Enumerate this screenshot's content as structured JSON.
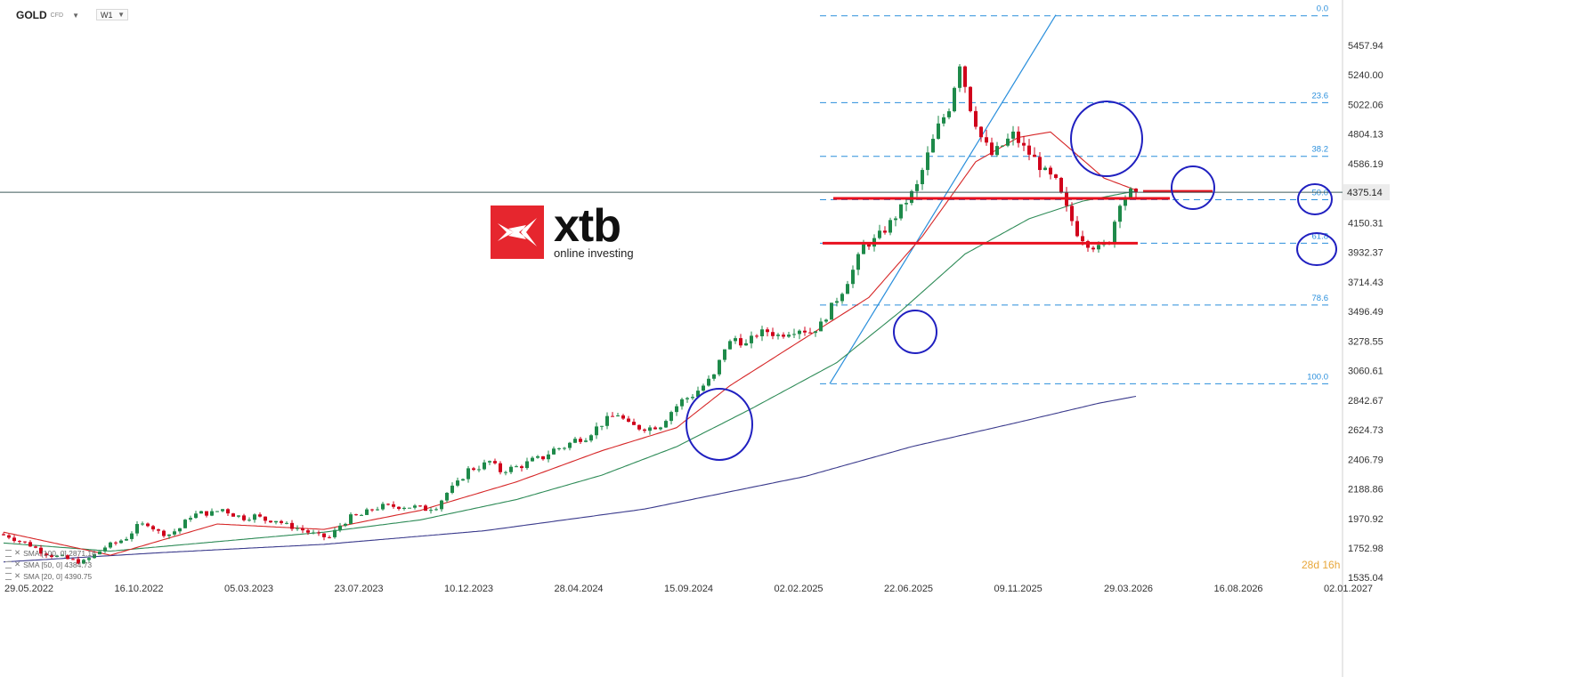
{
  "header": {
    "symbol": "GOLD",
    "symbol_type": "CFD",
    "timeframe": "W1"
  },
  "logo": {
    "name": "xtb",
    "tagline": "online investing"
  },
  "legend": [
    {
      "label": "SMA [100, 0] 2871.16",
      "color": "#3a3a8c"
    },
    {
      "label": "SMA [50, 0] 4384.73",
      "color": "#2e8b57"
    },
    {
      "label": "SMA [20, 0] 4390.75",
      "color": "#d62728"
    }
  ],
  "countdown": "28d 16h",
  "colors": {
    "bull": "#1e8a4a",
    "bear": "#d0021b",
    "fib": "#2a8fdc",
    "circle": "#2020c0",
    "level": "#e8101e"
  },
  "chart_data": {
    "type": "candlestick",
    "title": "GOLD CFD W1",
    "x_ticks": [
      "29.05.2022",
      "16.10.2022",
      "05.03.2023",
      "23.07.2023",
      "10.12.2023",
      "28.04.2024",
      "15.09.2024",
      "02.02.2025",
      "22.06.2025",
      "09.11.2025",
      "29.03.2026",
      "16.08.2026",
      "02.01.2027"
    ],
    "y_ticks": [
      5457.94,
      5240.0,
      5022.06,
      4804.13,
      4586.19,
      4150.31,
      3932.37,
      3714.43,
      3496.49,
      3278.55,
      3060.61,
      2842.67,
      2624.73,
      2406.79,
      2188.86,
      1970.92,
      1752.98,
      1535.04
    ],
    "ylim": [
      1535.04,
      5676
    ],
    "current_price": 4375.14,
    "x_unit": "weeks since 29.05.2022",
    "anchors": [
      [
        0,
        1855
      ],
      [
        2,
        1840
      ],
      [
        4,
        1805
      ],
      [
        6,
        1775
      ],
      [
        8,
        1730
      ],
      [
        10,
        1700
      ],
      [
        12,
        1680
      ],
      [
        14,
        1660
      ],
      [
        16,
        1650
      ],
      [
        18,
        1700
      ],
      [
        20,
        1760
      ],
      [
        22,
        1790
      ],
      [
        24,
        1830
      ],
      [
        26,
        1910
      ],
      [
        28,
        1935
      ],
      [
        30,
        1870
      ],
      [
        32,
        1855
      ],
      [
        34,
        1900
      ],
      [
        36,
        1990
      ],
      [
        38,
        2010
      ],
      [
        40,
        2010
      ],
      [
        42,
        2040
      ],
      [
        44,
        2000
      ],
      [
        46,
        1975
      ],
      [
        48,
        1990
      ],
      [
        50,
        1960
      ],
      [
        52,
        1960
      ],
      [
        54,
        1920
      ],
      [
        56,
        1900
      ],
      [
        58,
        1870
      ],
      [
        60,
        1840
      ],
      [
        62,
        1830
      ],
      [
        64,
        1920
      ],
      [
        66,
        1980
      ],
      [
        68,
        1995
      ],
      [
        70,
        2040
      ],
      [
        72,
        2060
      ],
      [
        74,
        2060
      ],
      [
        76,
        2060
      ],
      [
        78,
        2055
      ],
      [
        80,
        2040
      ],
      [
        82,
        2060
      ],
      [
        84,
        2160
      ],
      [
        86,
        2230
      ],
      [
        88,
        2330
      ],
      [
        90,
        2350
      ],
      [
        92,
        2390
      ],
      [
        94,
        2320
      ],
      [
        96,
        2340
      ],
      [
        98,
        2360
      ],
      [
        100,
        2400
      ],
      [
        102,
        2420
      ],
      [
        104,
        2480
      ],
      [
        106,
        2500
      ],
      [
        108,
        2550
      ],
      [
        110,
        2570
      ],
      [
        112,
        2640
      ],
      [
        114,
        2700
      ],
      [
        116,
        2740
      ],
      [
        118,
        2660
      ],
      [
        120,
        2640
      ],
      [
        122,
        2640
      ],
      [
        124,
        2660
      ],
      [
        126,
        2760
      ],
      [
        128,
        2840
      ],
      [
        130,
        2880
      ],
      [
        132,
        2950
      ],
      [
        134,
        3020
      ],
      [
        136,
        3230
      ],
      [
        138,
        3300
      ],
      [
        140,
        3250
      ],
      [
        142,
        3330
      ],
      [
        144,
        3350
      ],
      [
        146,
        3320
      ],
      [
        148,
        3350
      ],
      [
        150,
        3370
      ],
      [
        152,
        3345
      ],
      [
        154,
        3400
      ],
      [
        156,
        3530
      ],
      [
        158,
        3650
      ],
      [
        160,
        3800
      ],
      [
        162,
        3980
      ],
      [
        164,
        4020
      ],
      [
        166,
        4100
      ],
      [
        168,
        4200
      ],
      [
        170,
        4310
      ],
      [
        172,
        4420
      ],
      [
        174,
        4650
      ],
      [
        176,
        4860
      ],
      [
        178,
        5000
      ],
      [
        180,
        5330
      ],
      [
        182,
        5000
      ],
      [
        184,
        4780
      ],
      [
        186,
        4650
      ],
      [
        188,
        4720
      ],
      [
        190,
        4800
      ],
      [
        192,
        4700
      ],
      [
        194,
        4620
      ],
      [
        196,
        4520
      ],
      [
        198,
        4450
      ],
      [
        200,
        4250
      ],
      [
        202,
        4080
      ],
      [
        204,
        4000
      ],
      [
        206,
        3960
      ],
      [
        208,
        4020
      ],
      [
        210,
        4310
      ],
      [
        212,
        4375.14
      ]
    ],
    "sma20_anchors": [
      [
        0,
        1870
      ],
      [
        20,
        1700
      ],
      [
        40,
        1930
      ],
      [
        60,
        1890
      ],
      [
        78,
        2030
      ],
      [
        96,
        2240
      ],
      [
        112,
        2470
      ],
      [
        126,
        2640
      ],
      [
        136,
        2950
      ],
      [
        150,
        3300
      ],
      [
        162,
        3600
      ],
      [
        172,
        4050
      ],
      [
        182,
        4600
      ],
      [
        190,
        4780
      ],
      [
        196,
        4820
      ],
      [
        206,
        4480
      ],
      [
        212,
        4390.75
      ]
    ],
    "sma50_anchors": [
      [
        0,
        1790
      ],
      [
        20,
        1730
      ],
      [
        40,
        1800
      ],
      [
        60,
        1870
      ],
      [
        78,
        1960
      ],
      [
        96,
        2110
      ],
      [
        112,
        2290
      ],
      [
        126,
        2500
      ],
      [
        140,
        2780
      ],
      [
        156,
        3120
      ],
      [
        168,
        3500
      ],
      [
        180,
        3920
      ],
      [
        192,
        4180
      ],
      [
        202,
        4310
      ],
      [
        212,
        4384.73
      ]
    ],
    "sma100_anchors": [
      [
        0,
        1650
      ],
      [
        30,
        1720
      ],
      [
        60,
        1780
      ],
      [
        90,
        1880
      ],
      [
        120,
        2040
      ],
      [
        150,
        2280
      ],
      [
        170,
        2500
      ],
      [
        190,
        2680
      ],
      [
        205,
        2820
      ],
      [
        212,
        2871.16
      ]
    ],
    "fibonacci": {
      "high": 5676,
      "low": 2964,
      "levels": [
        {
          "label": "0.0",
          "price": 5676
        },
        {
          "label": "23.6",
          "price": 5036
        },
        {
          "label": "38.2",
          "price": 4640
        },
        {
          "label": "50.0",
          "price": 4320
        },
        {
          "label": "61.8",
          "price": 4000
        },
        {
          "label": "78.6",
          "price": 3544
        },
        {
          "label": "100.0",
          "price": 2964
        }
      ]
    },
    "trendline": [
      [
        132,
        2964
      ],
      [
        180,
        5676
      ]
    ],
    "horizontal_levels": [
      {
        "x": [
          154,
          212
        ],
        "price": 4330
      },
      {
        "x": [
          152,
          206
        ],
        "price": 4000
      },
      {
        "x": [
          212,
          220
        ],
        "price": 4382
      }
    ],
    "circles": [
      {
        "week": 122,
        "price": 2680,
        "label": "circle-consolidation-2024"
      },
      {
        "week": 152,
        "price": 3340,
        "label": "circle-consolidation-2025"
      },
      {
        "week": 189,
        "price": 4780,
        "label": "circle-top-2026"
      },
      {
        "week": 209,
        "price": 4400,
        "label": "circle-current"
      },
      {
        "week": 226,
        "price": 4330,
        "label": "circle-fib-50"
      },
      {
        "week": 226,
        "price": 3990,
        "label": "circle-fib-61-8"
      }
    ]
  }
}
